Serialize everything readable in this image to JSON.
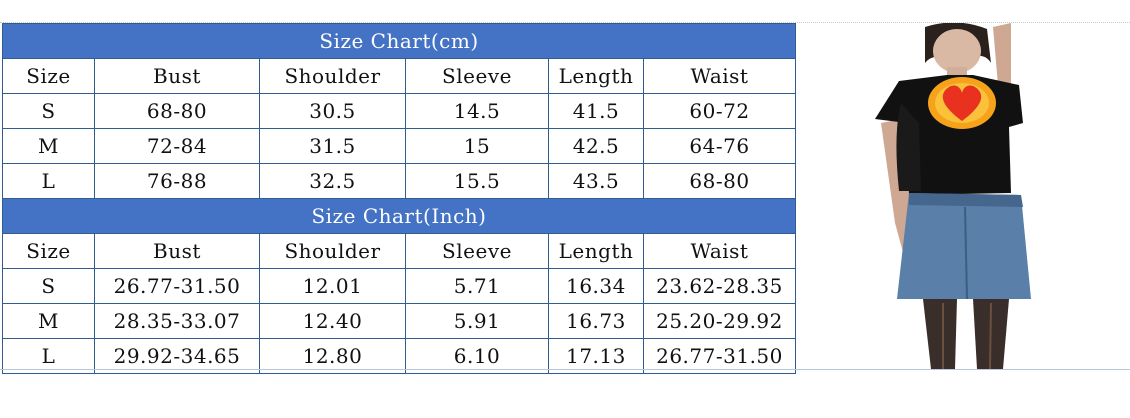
{
  "cm_chart": {
    "title": "Size Chart(cm)",
    "columns": [
      "Size",
      "Bust",
      "Shoulder",
      "Sleeve",
      "Length",
      "Waist"
    ],
    "rows": [
      [
        "S",
        "68-80",
        "30.5",
        "14.5",
        "41.5",
        "60-72"
      ],
      [
        "M",
        "72-84",
        "31.5",
        "15",
        "42.5",
        "64-76"
      ],
      [
        "L",
        "76-88",
        "32.5",
        "15.5",
        "43.5",
        "68-80"
      ]
    ]
  },
  "inch_chart": {
    "title": "Size Chart(Inch)",
    "columns": [
      "Size",
      "Bust",
      "Shoulder",
      "Sleeve",
      "Length",
      "Waist"
    ],
    "rows": [
      [
        "S",
        "26.77-31.50",
        "12.01",
        "5.71",
        "16.34",
        "23.62-28.35"
      ],
      [
        "M",
        "28.35-33.07",
        "12.40",
        "5.91",
        "16.73",
        "25.20-29.92"
      ],
      [
        "L",
        "29.92-34.65",
        "12.80",
        "6.10",
        "17.13",
        "26.77-31.50"
      ]
    ]
  },
  "colors": {
    "header_bg": "#4472c4",
    "header_text": "#ffffff",
    "border": "#2f5d8e"
  },
  "product_image": {
    "icon": "model-photo-icon",
    "heart_color": "#e8321f",
    "glow_color": "#f6a21a"
  }
}
